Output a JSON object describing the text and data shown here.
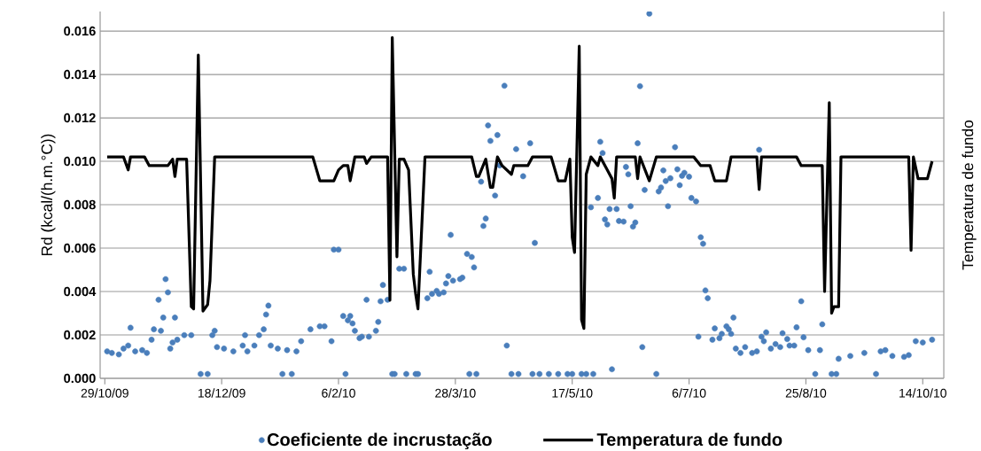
{
  "chart_data": {
    "type": "scatter",
    "ylabel": "Rd (kcal/(h.m.°C))",
    "y2label": "Temperatura de fundo",
    "xlim": [
      "2009-10-27",
      "2010-10-23"
    ],
    "ylim": [
      0,
      0.0169
    ],
    "xticks": [
      {
        "value": "2009-10-29",
        "label": "29/10/09"
      },
      {
        "value": "2009-12-18",
        "label": "18/12/09"
      },
      {
        "value": "2010-02-06",
        "label": "6/2/10"
      },
      {
        "value": "2010-03-28",
        "label": "28/3/10"
      },
      {
        "value": "2010-05-17",
        "label": "17/5/10"
      },
      {
        "value": "2010-07-06",
        "label": "6/7/10"
      },
      {
        "value": "2010-08-25",
        "label": "25/8/10"
      },
      {
        "value": "2010-10-14",
        "label": "14/10/10"
      }
    ],
    "yticks": [
      {
        "value": 0,
        "label": "0.000"
      },
      {
        "value": 0.002,
        "label": "0.002"
      },
      {
        "value": 0.004,
        "label": "0.004"
      },
      {
        "value": 0.006,
        "label": "0.006"
      },
      {
        "value": 0.008,
        "label": "0.008"
      },
      {
        "value": 0.01,
        "label": "0.010"
      },
      {
        "value": 0.012,
        "label": "0.012"
      },
      {
        "value": 0.014,
        "label": "0.014"
      },
      {
        "value": 0.016,
        "label": "0.016"
      }
    ],
    "grid": "y",
    "legend": "bottom",
    "series": [
      {
        "name": "Coeficiente de incrustação",
        "marker": "circle",
        "color": "#4a7ebb",
        "x": [
          "2009-10-30",
          "2009-11-01",
          "2009-11-04",
          "2009-11-06",
          "2009-11-08",
          "2009-11-09",
          "2009-11-11",
          "2009-11-14",
          "2009-11-16",
          "2009-11-18",
          "2009-11-19",
          "2009-11-21",
          "2009-11-22",
          "2009-11-23",
          "2009-11-24",
          "2009-11-25",
          "2009-11-26",
          "2009-11-27",
          "2009-11-28",
          "2009-11-29",
          "2009-12-02",
          "2009-12-05",
          "2009-12-09",
          "2009-12-12",
          "2009-12-14",
          "2009-12-15",
          "2009-12-16",
          "2009-12-19",
          "2009-12-23",
          "2009-12-27",
          "2009-12-28",
          "2009-12-29",
          "2010-01-01",
          "2010-01-03",
          "2010-01-05",
          "2010-01-06",
          "2010-01-07",
          "2010-01-08",
          "2010-01-11",
          "2010-01-13",
          "2010-01-15",
          "2010-01-17",
          "2010-01-19",
          "2010-01-21",
          "2010-01-25",
          "2010-01-29",
          "2010-01-31",
          "2010-02-03",
          "2010-02-04",
          "2010-02-06",
          "2010-02-08",
          "2010-02-09",
          "2010-02-10",
          "2010-02-11",
          "2010-02-12",
          "2010-02-13",
          "2010-02-15",
          "2010-02-16",
          "2010-02-18",
          "2010-02-19",
          "2010-02-22",
          "2010-02-23",
          "2010-02-24",
          "2010-02-25",
          "2010-02-27",
          "2010-03-01",
          "2010-03-02",
          "2010-03-04",
          "2010-03-06",
          "2010-03-07",
          "2010-03-11",
          "2010-03-12",
          "2010-03-16",
          "2010-03-17",
          "2010-03-18",
          "2010-03-20",
          "2010-03-21",
          "2010-03-23",
          "2010-03-24",
          "2010-03-25",
          "2010-03-26",
          "2010-03-27",
          "2010-03-30",
          "2010-03-31",
          "2010-04-02",
          "2010-04-03",
          "2010-04-04",
          "2010-04-05",
          "2010-04-06",
          "2010-04-08",
          "2010-04-09",
          "2010-04-10",
          "2010-04-11",
          "2010-04-12",
          "2010-04-14",
          "2010-04-15",
          "2010-04-16",
          "2010-04-18",
          "2010-04-19",
          "2010-04-21",
          "2010-04-23",
          "2010-04-24",
          "2010-04-26",
          "2010-04-29",
          "2010-04-30",
          "2010-05-01",
          "2010-05-03",
          "2010-05-07",
          "2010-05-11",
          "2010-05-15",
          "2010-05-17",
          "2010-05-21",
          "2010-05-23",
          "2010-05-25",
          "2010-05-26",
          "2010-05-28",
          "2010-05-29",
          "2010-05-30",
          "2010-05-31",
          "2010-06-01",
          "2010-06-02",
          "2010-06-03",
          "2010-06-05",
          "2010-06-06",
          "2010-06-08",
          "2010-06-09",
          "2010-06-10",
          "2010-06-11",
          "2010-06-12",
          "2010-06-13",
          "2010-06-14",
          "2010-06-15",
          "2010-06-16",
          "2010-06-17",
          "2010-06-19",
          "2010-06-22",
          "2010-06-23",
          "2010-06-24",
          "2010-06-25",
          "2010-06-26",
          "2010-06-27",
          "2010-06-28",
          "2010-06-30",
          "2010-07-01",
          "2010-07-02",
          "2010-07-03",
          "2010-07-04",
          "2010-07-06",
          "2010-07-07",
          "2010-07-09",
          "2010-07-10",
          "2010-07-11",
          "2010-07-12",
          "2010-07-13",
          "2010-07-14",
          "2010-07-16",
          "2010-07-17",
          "2010-07-19",
          "2010-07-20",
          "2010-07-22",
          "2010-07-23",
          "2010-07-24",
          "2010-07-25",
          "2010-07-26",
          "2010-07-28",
          "2010-07-30",
          "2010-08-02",
          "2010-08-04",
          "2010-08-05",
          "2010-08-06",
          "2010-08-07",
          "2010-08-08",
          "2010-08-10",
          "2010-08-12",
          "2010-08-14",
          "2010-08-15",
          "2010-08-17",
          "2010-08-18",
          "2010-08-20",
          "2010-08-21",
          "2010-08-23",
          "2010-08-24",
          "2010-08-26",
          "2010-08-29",
          "2010-08-31",
          "2010-09-01",
          "2010-09-05",
          "2010-09-07",
          "2010-09-08",
          "2010-09-13",
          "2010-09-19",
          "2010-09-24",
          "2010-09-26",
          "2010-09-28",
          "2010-10-01",
          "2010-10-06",
          "2010-10-08",
          "2010-10-11",
          "2010-10-14",
          "2010-10-18"
        ],
        "values": [
          0.00124,
          0.00117,
          0.0011,
          0.00137,
          0.00151,
          0.00233,
          0.00124,
          0.0013,
          0.00117,
          0.00178,
          0.00226,
          0.00362,
          0.00219,
          0.0028,
          0.00457,
          0.00396,
          0.00137,
          0.00165,
          0.0028,
          0.00178,
          0.00199,
          0.00199,
          0.0002,
          0.0002,
          0.00199,
          0.00219,
          0.00144,
          0.00137,
          0.00124,
          0.00151,
          0.00199,
          0.00124,
          0.00151,
          0.00199,
          0.00226,
          0.00294,
          0.00335,
          0.00151,
          0.00137,
          0.0002,
          0.0013,
          0.0002,
          0.00124,
          0.00171,
          0.00226,
          0.0024,
          0.0024,
          0.00171,
          0.00593,
          0.00593,
          0.00287,
          0.0002,
          0.00267,
          0.00287,
          0.00253,
          0.00219,
          0.00185,
          0.00192,
          0.00362,
          0.00192,
          0.00219,
          0.0026,
          0.00355,
          0.0043,
          0.00362,
          0.0002,
          0.0002,
          0.00505,
          0.00505,
          0.0002,
          0.0002,
          0.0002,
          0.00369,
          0.00491,
          0.00389,
          0.00403,
          0.00389,
          0.00396,
          0.00437,
          0.00471,
          0.00661,
          0.0045,
          0.00457,
          0.00464,
          0.00573,
          0.0002,
          0.00559,
          0.00511,
          0.0002,
          0.00906,
          0.00702,
          0.00736,
          0.01165,
          0.01094,
          0.00842,
          0.01121,
          0.00981,
          0.01348,
          0.00151,
          0.0002,
          0.01056,
          0.0002,
          0.00931,
          0.01083,
          0.0002,
          0.00624,
          0.0002,
          0.0002,
          0.0002,
          0.0002,
          0.0002,
          0.0002,
          0.0002,
          0.00788,
          0.0002,
          0.00831,
          0.0109,
          0.01038,
          0.00732,
          0.00709,
          0.0078,
          0.00042,
          0.0078,
          0.00725,
          0.00722,
          0.00974,
          0.0094,
          0.00793,
          0.00699,
          0.00718,
          0.01083,
          0.01346,
          0.00144,
          0.00868,
          0.0168,
          0.0002,
          0.00861,
          0.00879,
          0.00958,
          0.00909,
          0.00793,
          0.00922,
          0.01065,
          0.00963,
          0.0089,
          0.00933,
          0.00947,
          0.00929,
          0.00831,
          0.00815,
          0.00192,
          0.0065,
          0.0062,
          0.00405,
          0.00369,
          0.00178,
          0.0023,
          0.00185,
          0.00205,
          0.0024,
          0.00226,
          0.00205,
          0.0028,
          0.00137,
          0.00117,
          0.00144,
          0.00117,
          0.00124,
          0.01053,
          0.00192,
          0.00171,
          0.00212,
          0.00137,
          0.00158,
          0.00144,
          0.00208,
          0.00181,
          0.00151,
          0.00151,
          0.00235,
          0.00355,
          0.00189,
          0.0013,
          0.0002,
          0.0013,
          0.00249,
          0.0002,
          0.0002,
          0.0009,
          0.00103,
          0.00117,
          0.0002,
          0.00124,
          0.0013,
          0.00103,
          0.00099,
          0.00107,
          0.00171,
          0.00165,
          0.00178
        ]
      },
      {
        "name": "Temperatura de fundo",
        "type": "line",
        "marker": "none",
        "line_style": "solid",
        "color": "#000000",
        "x": [
          "2009-10-30",
          "2009-11-06",
          "2009-11-08",
          "2009-11-09",
          "2009-11-15",
          "2009-11-17",
          "2009-11-25",
          "2009-11-27",
          "2009-11-28",
          "2009-11-29",
          "2009-12-03",
          "2009-12-05",
          "2009-12-06",
          "2009-12-08",
          "2009-12-10",
          "2009-12-12",
          "2009-12-13",
          "2009-12-15",
          "2010-01-26",
          "2010-01-29",
          "2010-02-04",
          "2010-02-06",
          "2010-02-08",
          "2010-02-10",
          "2010-02-11",
          "2010-02-13",
          "2010-02-17",
          "2010-02-18",
          "2010-02-20",
          "2010-02-27",
          "2010-02-28",
          "2010-03-01",
          "2010-03-03",
          "2010-03-04",
          "2010-03-06",
          "2010-03-08",
          "2010-03-10",
          "2010-03-11",
          "2010-03-12",
          "2010-03-15",
          "2010-04-04",
          "2010-04-06",
          "2010-04-07",
          "2010-04-10",
          "2010-04-12",
          "2010-04-13",
          "2010-04-15",
          "2010-04-17",
          "2010-04-21",
          "2010-04-22",
          "2010-04-28",
          "2010-04-30",
          "2010-05-08",
          "2010-05-11",
          "2010-05-14",
          "2010-05-16",
          "2010-05-17",
          "2010-05-18",
          "2010-05-20",
          "2010-05-21",
          "2010-05-22",
          "2010-05-23",
          "2010-05-25",
          "2010-05-28",
          "2010-05-29",
          "2010-06-01",
          "2010-06-03",
          "2010-06-04",
          "2010-06-05",
          "2010-06-13",
          "2010-06-14",
          "2010-06-15",
          "2010-06-19",
          "2010-06-22",
          "2010-07-08",
          "2010-07-11",
          "2010-07-15",
          "2010-07-17",
          "2010-07-22",
          "2010-07-24",
          "2010-08-04",
          "2010-08-05",
          "2010-08-06",
          "2010-08-21",
          "2010-08-23",
          "2010-09-01",
          "2010-09-02",
          "2010-09-04",
          "2010-09-05",
          "2010-09-06",
          "2010-09-08",
          "2010-09-09",
          "2010-10-08",
          "2010-10-09",
          "2010-10-10",
          "2010-10-12",
          "2010-10-16",
          "2010-10-18"
        ],
        "values": [
          0.0102,
          0.0102,
          0.0096,
          0.0102,
          0.0102,
          0.0098,
          0.0098,
          0.0101,
          0.0093,
          0.0101,
          0.0101,
          0.0033,
          0.0032,
          0.0149,
          0.0031,
          0.0034,
          0.0045,
          0.0102,
          0.0102,
          0.0091,
          0.0091,
          0.0096,
          0.0098,
          0.0098,
          0.0091,
          0.0102,
          0.0102,
          0.0099,
          0.0102,
          0.0102,
          0.0036,
          0.0157,
          0.0056,
          0.0101,
          0.0101,
          0.0096,
          0.0048,
          0.0039,
          0.0032,
          0.0102,
          0.0102,
          0.0093,
          0.0093,
          0.0101,
          0.0088,
          0.0088,
          0.0102,
          0.0098,
          0.0094,
          0.0098,
          0.0098,
          0.0102,
          0.0102,
          0.0091,
          0.0091,
          0.0101,
          0.0065,
          0.0058,
          0.0153,
          0.0027,
          0.0023,
          0.0094,
          0.0102,
          0.0098,
          0.0102,
          0.0096,
          0.0092,
          0.0083,
          0.0102,
          0.0102,
          0.0092,
          0.0102,
          0.0091,
          0.0102,
          0.0102,
          0.0098,
          0.0098,
          0.0091,
          0.0091,
          0.0102,
          0.0102,
          0.0087,
          0.0102,
          0.0102,
          0.0098,
          0.0098,
          0.004,
          0.0127,
          0.003,
          0.0033,
          0.0033,
          0.0102,
          0.0102,
          0.0059,
          0.0102,
          0.0092,
          0.0092,
          0.01
        ]
      }
    ]
  }
}
